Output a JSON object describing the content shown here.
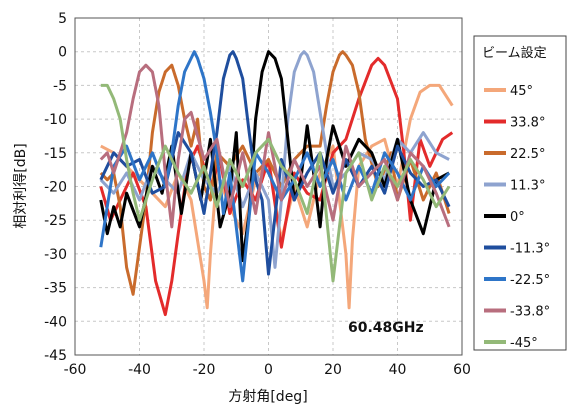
{
  "chart_data": {
    "type": "line",
    "xlabel": "方射角[deg]",
    "ylabel": "相対利得[dB]",
    "xlim": [
      -60,
      60
    ],
    "ylim": [
      -45,
      5
    ],
    "xticks": [
      -60,
      -40,
      -20,
      0,
      20,
      40,
      60
    ],
    "yticks": [
      5,
      0,
      -5,
      -10,
      -15,
      -20,
      -25,
      -30,
      -35,
      -40,
      -45
    ],
    "grid": "dashed",
    "legend_title": "ビーム設定",
    "legend_position": "right",
    "annotation": "60.48GHz",
    "series": [
      {
        "name": "45°",
        "color": "#F4A77A",
        "x": [
          -52,
          -48,
          -44,
          -40,
          -36,
          -32,
          -28,
          -24,
          -20,
          -19,
          -18,
          -16,
          -12,
          -8,
          -4,
          0,
          4,
          8,
          12,
          16,
          20,
          24,
          25,
          26,
          28,
          32,
          36,
          40,
          44,
          47,
          50,
          53,
          57
        ],
        "y": [
          -14,
          -15,
          -17,
          -19,
          -21,
          -23,
          -18,
          -22,
          -34,
          -38,
          -30,
          -18,
          -23,
          -27,
          -19,
          -16,
          -28,
          -20,
          -26,
          -18,
          -14,
          -30,
          -38,
          -28,
          -17,
          -14,
          -13,
          -20,
          -10,
          -6,
          -5,
          -5,
          -8
        ]
      },
      {
        "name": "33.8°",
        "color": "#E32B2B",
        "x": [
          -52,
          -49,
          -46,
          -42,
          -38,
          -35,
          -32,
          -30,
          -28,
          -25,
          -22,
          -18,
          -15,
          -12,
          -8,
          -4,
          0,
          4,
          8,
          12,
          16,
          20,
          24,
          28,
          32,
          34,
          36,
          40,
          42,
          44,
          47,
          50,
          54,
          57
        ],
        "y": [
          -20,
          -25,
          -22,
          -18,
          -23,
          -34,
          -39,
          -34,
          -27,
          -17,
          -14,
          -20,
          -16,
          -24,
          -19,
          -22,
          -16,
          -29,
          -18,
          -21,
          -22,
          -15,
          -13,
          -7,
          -2,
          -1,
          -2,
          -7,
          -15,
          -25,
          -13,
          -17,
          -13,
          -12
        ]
      },
      {
        "name": "22.5°",
        "color": "#C96B2C",
        "x": [
          -52,
          -50,
          -48,
          -46,
          -44,
          -42,
          -40,
          -38,
          -36,
          -34,
          -32,
          -30,
          -28,
          -26,
          -24,
          -22,
          -20,
          -18,
          -16,
          -12,
          -8,
          -4,
          0,
          4,
          8,
          12,
          16,
          18,
          20,
          22,
          23,
          24,
          26,
          28,
          30,
          34,
          38,
          40,
          44,
          48,
          52,
          56
        ],
        "y": [
          -18,
          -19,
          -18,
          -23,
          -32,
          -36,
          -29,
          -22,
          -12,
          -6,
          -3,
          -2,
          -5,
          -10,
          -14,
          -10,
          -20,
          -22,
          -15,
          -17,
          -14,
          -18,
          -16,
          -20,
          -16,
          -14,
          -14,
          -8,
          -3,
          -0.5,
          0,
          -0.5,
          -2,
          -6,
          -13,
          -20,
          -15,
          -22,
          -16,
          -22,
          -18,
          -24
        ]
      },
      {
        "name": "11.3°",
        "color": "#8EA3CF",
        "x": [
          -52,
          -48,
          -44,
          -40,
          -36,
          -32,
          -28,
          -24,
          -20,
          -16,
          -12,
          -8,
          -4,
          0,
          2,
          4,
          6,
          8,
          10,
          11,
          12,
          14,
          16,
          18,
          20,
          24,
          28,
          32,
          36,
          40,
          44,
          48,
          52,
          56
        ],
        "y": [
          -19,
          -21,
          -18,
          -22,
          -17,
          -19,
          -21,
          -15,
          -19,
          -21,
          -17,
          -23,
          -18,
          -22,
          -32,
          -22,
          -10,
          -3,
          -0.5,
          0,
          -0.5,
          -3,
          -9,
          -15,
          -20,
          -18,
          -15,
          -16,
          -19,
          -13,
          -15,
          -12,
          -15,
          -16
        ]
      },
      {
        "name": "0°",
        "color": "#000000",
        "x": [
          -52,
          -50,
          -48,
          -46,
          -44,
          -40,
          -36,
          -33,
          -30,
          -27,
          -24,
          -21,
          -18,
          -15,
          -12,
          -10,
          -8,
          -6,
          -4,
          -2,
          0,
          2,
          4,
          6,
          8,
          10,
          12,
          14,
          16,
          18,
          20,
          24,
          28,
          32,
          36,
          40,
          44,
          48,
          52,
          56
        ],
        "y": [
          -22,
          -27,
          -23,
          -26,
          -21,
          -26,
          -17,
          -21,
          -14,
          -24,
          -15,
          -22,
          -13,
          -26,
          -21,
          -12,
          -31,
          -24,
          -10,
          -3,
          0,
          -1,
          -4,
          -13,
          -22,
          -19,
          -11,
          -18,
          -26,
          -16,
          -11,
          -17,
          -13,
          -15,
          -20,
          -13,
          -22,
          -27,
          -19,
          -18
        ]
      },
      {
        "name": "-11.3°",
        "color": "#1F4E9E",
        "x": [
          -52,
          -48,
          -44,
          -40,
          -36,
          -32,
          -28,
          -24,
          -20,
          -16,
          -14,
          -12,
          -11,
          -10,
          -8,
          -6,
          -4,
          -2,
          0,
          4,
          8,
          12,
          16,
          20,
          24,
          28,
          32,
          36,
          40,
          44,
          48,
          52,
          56
        ],
        "y": [
          -19,
          -15,
          -17,
          -16,
          -21,
          -20,
          -12,
          -15,
          -24,
          -12,
          -4,
          -0.5,
          0,
          -1,
          -4,
          -12,
          -19,
          -22,
          -33,
          -16,
          -22,
          -18,
          -15,
          -21,
          -16,
          -20,
          -17,
          -21,
          -14,
          -18,
          -20,
          -19,
          -23
        ]
      },
      {
        "name": "-22.5°",
        "color": "#2E75C8",
        "x": [
          -52,
          -48,
          -44,
          -40,
          -36,
          -32,
          -30,
          -28,
          -26,
          -24,
          -23,
          -22,
          -20,
          -18,
          -16,
          -14,
          -12,
          -8,
          -4,
          0,
          4,
          8,
          12,
          16,
          20,
          24,
          28,
          32,
          36,
          40,
          44,
          48,
          52,
          56
        ],
        "y": [
          -29,
          -17,
          -14,
          -19,
          -15,
          -20,
          -15,
          -8,
          -3,
          -1,
          0,
          -1,
          -4,
          -9,
          -15,
          -24,
          -18,
          -34,
          -15,
          -18,
          -22,
          -19,
          -15,
          -20,
          -16,
          -22,
          -17,
          -21,
          -15,
          -18,
          -22,
          -17,
          -20,
          -18
        ]
      },
      {
        "name": "-33.8°",
        "color": "#B86E7E",
        "x": [
          -52,
          -50,
          -48,
          -44,
          -42,
          -40,
          -38,
          -36,
          -34,
          -32,
          -30,
          -28,
          -26,
          -24,
          -20,
          -16,
          -12,
          -8,
          -4,
          0,
          4,
          8,
          12,
          16,
          20,
          24,
          28,
          32,
          36,
          40,
          44,
          48,
          52,
          56
        ],
        "y": [
          -16,
          -15,
          -18,
          -12,
          -7,
          -3,
          -2,
          -3,
          -8,
          -18,
          -26,
          -16,
          -10,
          -9,
          -16,
          -13,
          -23,
          -15,
          -24,
          -12,
          -22,
          -16,
          -20,
          -17,
          -25,
          -14,
          -20,
          -18,
          -16,
          -22,
          -15,
          -17,
          -21,
          -26
        ]
      },
      {
        "name": "-45°",
        "color": "#93B978",
        "x": [
          -52,
          -50,
          -48,
          -46,
          -44,
          -42,
          -40,
          -36,
          -32,
          -28,
          -24,
          -20,
          -16,
          -12,
          -8,
          -4,
          0,
          4,
          8,
          12,
          16,
          20,
          24,
          28,
          32,
          36,
          40,
          44,
          48,
          52,
          56
        ],
        "y": [
          -5,
          -5,
          -7,
          -10,
          -16,
          -21,
          -25,
          -19,
          -14,
          -18,
          -21,
          -17,
          -23,
          -16,
          -20,
          -15,
          -13,
          -17,
          -19,
          -24,
          -15,
          -34,
          -18,
          -15,
          -22,
          -17,
          -20,
          -16,
          -19,
          -23,
          -20
        ]
      }
    ]
  }
}
